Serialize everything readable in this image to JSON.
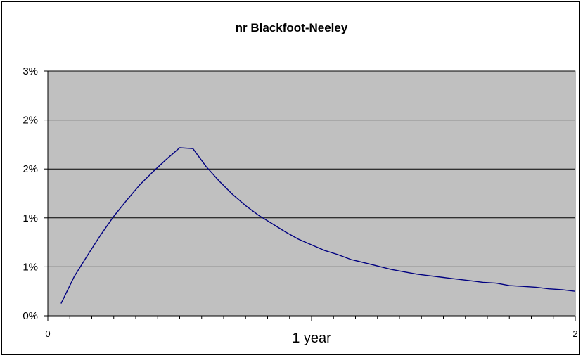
{
  "chart_data": {
    "type": "line",
    "title": "nr Blackfoot-Neeley",
    "xlabel": "",
    "ylabel": "",
    "xlim": [
      0,
      2
    ],
    "ylim": [
      0,
      0.03
    ],
    "y_ticks": [
      "0%",
      "1%",
      "1%",
      "2%",
      "2%",
      "3%"
    ],
    "x_ticks": [
      {
        "value": 0,
        "label": "0"
      },
      {
        "value": 1,
        "label": "1 year"
      },
      {
        "value": 2,
        "label": "2"
      }
    ],
    "grid": true,
    "legend": "none",
    "plot_background": "#c0c0c0",
    "series": [
      {
        "color": "#000080",
        "x": [
          0.05,
          0.1,
          0.15,
          0.2,
          0.25,
          0.3,
          0.35,
          0.4,
          0.45,
          0.5,
          0.55,
          0.6,
          0.65,
          0.7,
          0.75,
          0.8,
          0.85,
          0.9,
          0.95,
          1.0,
          1.05,
          1.1,
          1.15,
          1.2,
          1.25,
          1.3,
          1.35,
          1.4,
          1.45,
          1.5,
          1.55,
          1.6,
          1.65,
          1.7,
          1.75,
          1.8,
          1.85,
          1.9,
          1.95,
          2.0
        ],
        "y": [
          0.0015,
          0.0048,
          0.0074,
          0.0099,
          0.0122,
          0.0142,
          0.0161,
          0.0177,
          0.0192,
          0.0206,
          0.0205,
          0.0183,
          0.0165,
          0.0149,
          0.0135,
          0.0123,
          0.0113,
          0.0103,
          0.0094,
          0.0087,
          0.008,
          0.0075,
          0.0069,
          0.0065,
          0.0061,
          0.0057,
          0.0054,
          0.0051,
          0.0049,
          0.0047,
          0.0045,
          0.0043,
          0.0041,
          0.004,
          0.0037,
          0.0036,
          0.0035,
          0.0033,
          0.0032,
          0.003
        ]
      }
    ]
  }
}
